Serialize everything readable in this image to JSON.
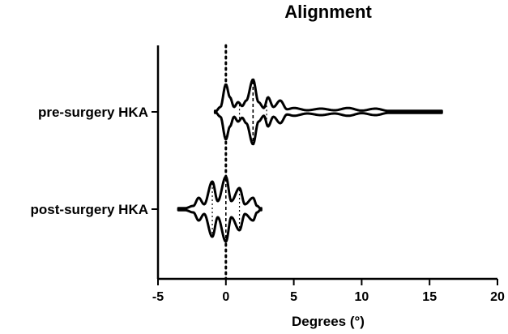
{
  "chart_data": {
    "type": "violin",
    "title": "Alignment",
    "xlabel": "Degrees (°)",
    "ylabel": "",
    "xlim": [
      -5,
      20
    ],
    "xticks": [
      -5,
      0,
      5,
      10,
      15,
      20
    ],
    "reference_line_x": 0,
    "categories": [
      "pre-surgery HKA",
      "post-surgery HKA"
    ],
    "series": [
      {
        "category": "pre-surgery HKA",
        "min": -0.8,
        "max": 15.9,
        "quartiles": [
          1.0,
          2.0,
          3.0
        ],
        "profile": [
          [
            -0.8,
            0.0
          ],
          [
            -0.4,
            0.15
          ],
          [
            0.0,
            0.85
          ],
          [
            0.3,
            0.45
          ],
          [
            0.6,
            0.15
          ],
          [
            0.9,
            0.3
          ],
          [
            1.2,
            0.18
          ],
          [
            1.5,
            0.35
          ],
          [
            2.0,
            1.0
          ],
          [
            2.4,
            0.3
          ],
          [
            2.8,
            0.12
          ],
          [
            3.1,
            0.45
          ],
          [
            3.5,
            0.15
          ],
          [
            4.0,
            0.35
          ],
          [
            4.5,
            0.08
          ],
          [
            5.0,
            0.12
          ],
          [
            6.0,
            0.05
          ],
          [
            7.0,
            0.1
          ],
          [
            8.0,
            0.05
          ],
          [
            9.0,
            0.12
          ],
          [
            10.0,
            0.04
          ],
          [
            11.0,
            0.1
          ],
          [
            12.0,
            0.03
          ],
          [
            13.0,
            0.03
          ],
          [
            14.0,
            0.02
          ],
          [
            15.0,
            0.02
          ],
          [
            15.9,
            0.0
          ]
        ]
      },
      {
        "category": "post-surgery HKA",
        "min": -3.5,
        "max": 2.6,
        "quartiles": [
          -1.0,
          0.0,
          1.0
        ],
        "profile": [
          [
            -3.5,
            0.0
          ],
          [
            -3.0,
            0.03
          ],
          [
            -2.4,
            0.1
          ],
          [
            -2.0,
            0.35
          ],
          [
            -1.6,
            0.15
          ],
          [
            -1.0,
            0.85
          ],
          [
            -0.6,
            0.25
          ],
          [
            0.0,
            1.0
          ],
          [
            0.4,
            0.25
          ],
          [
            1.0,
            0.65
          ],
          [
            1.4,
            0.15
          ],
          [
            2.0,
            0.35
          ],
          [
            2.3,
            0.1
          ],
          [
            2.6,
            0.0
          ]
        ]
      }
    ]
  }
}
